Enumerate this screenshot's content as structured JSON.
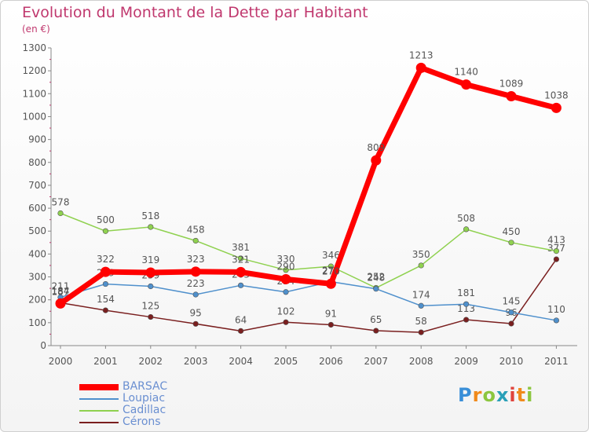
{
  "title": "Evolution du Montant de la Dette par Habitant",
  "unit_label": "(en €)",
  "brand": {
    "p": "P",
    "r": "r",
    "o": "o",
    "x": "x",
    "i": "i",
    "t": "t",
    "i2": "i"
  },
  "chart_data": {
    "type": "line",
    "x": [
      "2000",
      "2001",
      "2002",
      "2003",
      "2004",
      "2005",
      "2006",
      "2007",
      "2008",
      "2009",
      "2010",
      "2011"
    ],
    "ylim": [
      0,
      1300
    ],
    "yticks": [
      0,
      100,
      200,
      300,
      400,
      500,
      600,
      700,
      800,
      900,
      1000,
      1100,
      1200,
      1300
    ],
    "grid": false,
    "legend_position": "bottom-left",
    "series": [
      {
        "name": "Cérons",
        "color": "#7a1f1f",
        "values": [
          187,
          154,
          125,
          95,
          64,
          102,
          91,
          65,
          58,
          113,
          96,
          377
        ],
        "labels": [
          "187",
          "154",
          "125",
          "95",
          "64",
          "102",
          "91",
          "65",
          "58",
          "113",
          "96",
          "377"
        ]
      },
      {
        "name": "Cadillac",
        "color": "#8fd14f",
        "values": [
          578,
          500,
          518,
          458,
          381,
          330,
          346,
          252,
          350,
          508,
          450,
          413
        ],
        "labels": [
          "578",
          "500",
          "518",
          "458",
          "381",
          "330",
          "346",
          "252",
          "350",
          "508",
          "450",
          "413"
        ]
      },
      {
        "name": "Loupiac",
        "color": "#4f90cc",
        "values": [
          211,
          269,
          259,
          223,
          263,
          234,
          279,
          248,
          174,
          181,
          145,
          110
        ],
        "labels": [
          "211",
          "269",
          "259",
          "223",
          "263",
          "234",
          "279",
          "248",
          "174",
          "181",
          "145",
          "110"
        ]
      },
      {
        "name": "BARSAC",
        "color": "#ff0000",
        "values": [
          184,
          322,
          319,
          323,
          321,
          290,
          270,
          809,
          1213,
          1140,
          1089,
          1038
        ],
        "labels": [
          "184",
          "322",
          "319",
          "323",
          "321",
          "290",
          "270",
          "809",
          "1213",
          "1140",
          "1089",
          "1038"
        ]
      }
    ],
    "legend": [
      "BARSAC",
      "Loupiac",
      "Cadillac",
      "Cérons"
    ]
  }
}
